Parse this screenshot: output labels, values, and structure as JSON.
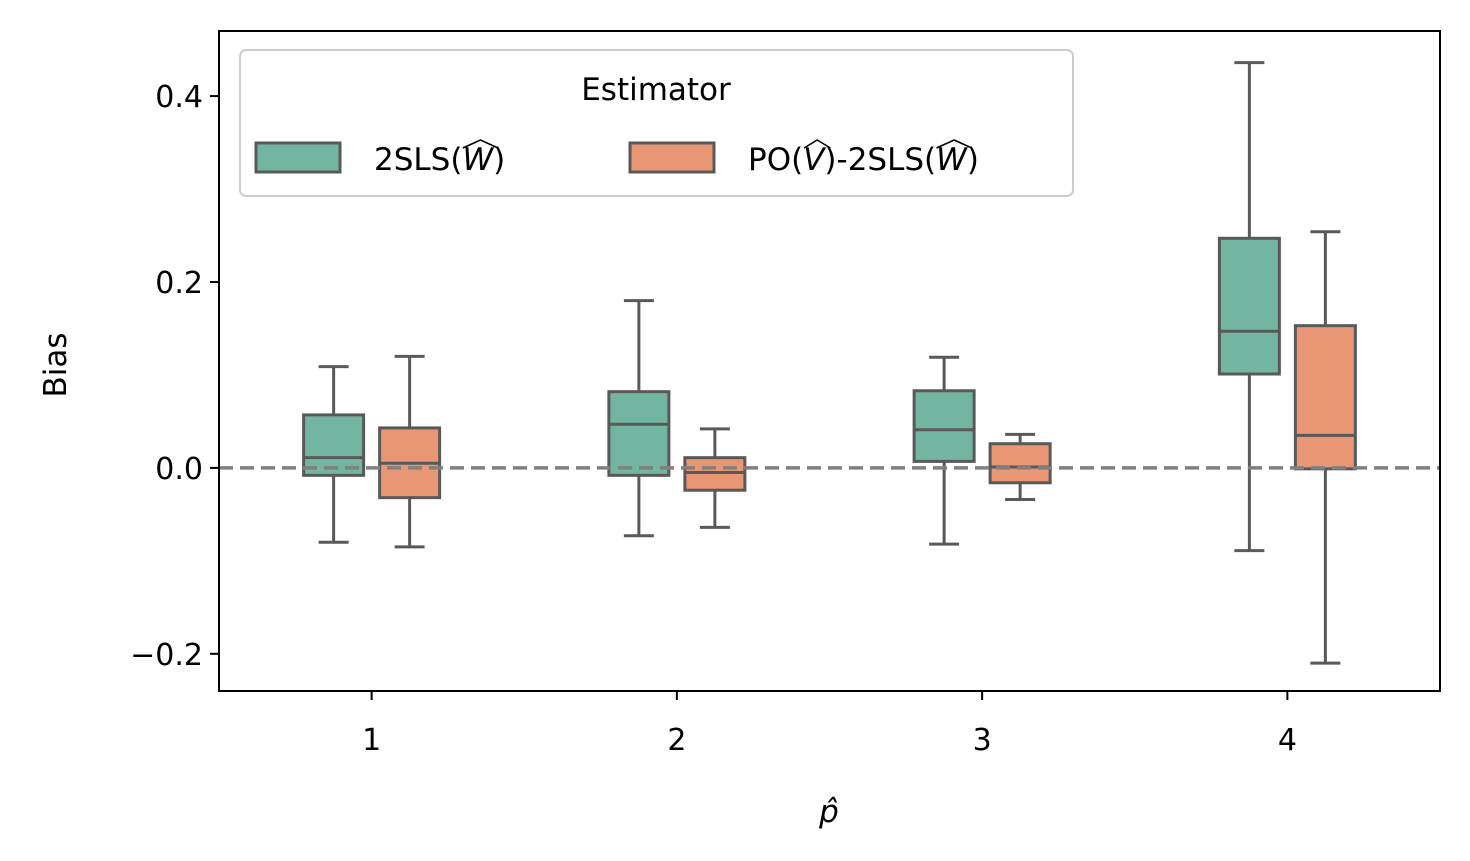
{
  "chart_data": {
    "type": "boxplot",
    "title": "",
    "xlabel": "p̂",
    "ylabel": "Bias",
    "categories": [
      "1",
      "2",
      "3",
      "4"
    ],
    "ylim": [
      -0.24,
      0.47
    ],
    "yticks": [
      -0.2,
      0.0,
      0.2,
      0.4
    ],
    "ytick_labels": [
      "−0.2",
      "0.0",
      "0.2",
      "0.4"
    ],
    "reference_line": {
      "y": 0.0,
      "style": "dashed",
      "color": "#808080"
    },
    "legend": {
      "title": "Estimator",
      "placement": "top-left",
      "entries": [
        {
          "prefix": "2SLS(",
          "hat": "W",
          "suffix": ")"
        },
        {
          "prefix": "PO(",
          "hat": "V",
          "middle": ")-2SLS(",
          "hat2": "W",
          "suffix": ")"
        }
      ]
    },
    "series": [
      {
        "name": "2SLS(Ŵ)",
        "color": "#72b6a1",
        "boxes": [
          {
            "category": "1",
            "whislo": -0.08,
            "q1": -0.008,
            "median": 0.011,
            "q3": 0.057,
            "whishi": 0.109
          },
          {
            "category": "2",
            "whislo": -0.073,
            "q1": -0.008,
            "median": 0.047,
            "q3": 0.082,
            "whishi": 0.18
          },
          {
            "category": "3",
            "whislo": -0.082,
            "q1": 0.007,
            "median": 0.041,
            "q3": 0.083,
            "whishi": 0.119
          },
          {
            "category": "4",
            "whislo": -0.089,
            "q1": 0.101,
            "median": 0.147,
            "q3": 0.247,
            "whishi": 0.436
          }
        ]
      },
      {
        "name": "PO(V̂)-2SLS(Ŵ)",
        "color": "#e99675",
        "boxes": [
          {
            "category": "1",
            "whislo": -0.085,
            "q1": -0.032,
            "median": 0.005,
            "q3": 0.043,
            "whishi": 0.12
          },
          {
            "category": "2",
            "whislo": -0.064,
            "q1": -0.024,
            "median": -0.005,
            "q3": 0.011,
            "whishi": 0.042
          },
          {
            "category": "3",
            "whislo": -0.034,
            "q1": -0.016,
            "median": 0.001,
            "q3": 0.026,
            "whishi": 0.036
          },
          {
            "category": "4",
            "whislo": -0.21,
            "q1": -0.001,
            "median": 0.035,
            "q3": 0.153,
            "whishi": 0.254
          }
        ]
      }
    ]
  },
  "colors": {
    "box_edge": "#595959",
    "axis": "#000000",
    "legend_border": "#cccccc"
  }
}
